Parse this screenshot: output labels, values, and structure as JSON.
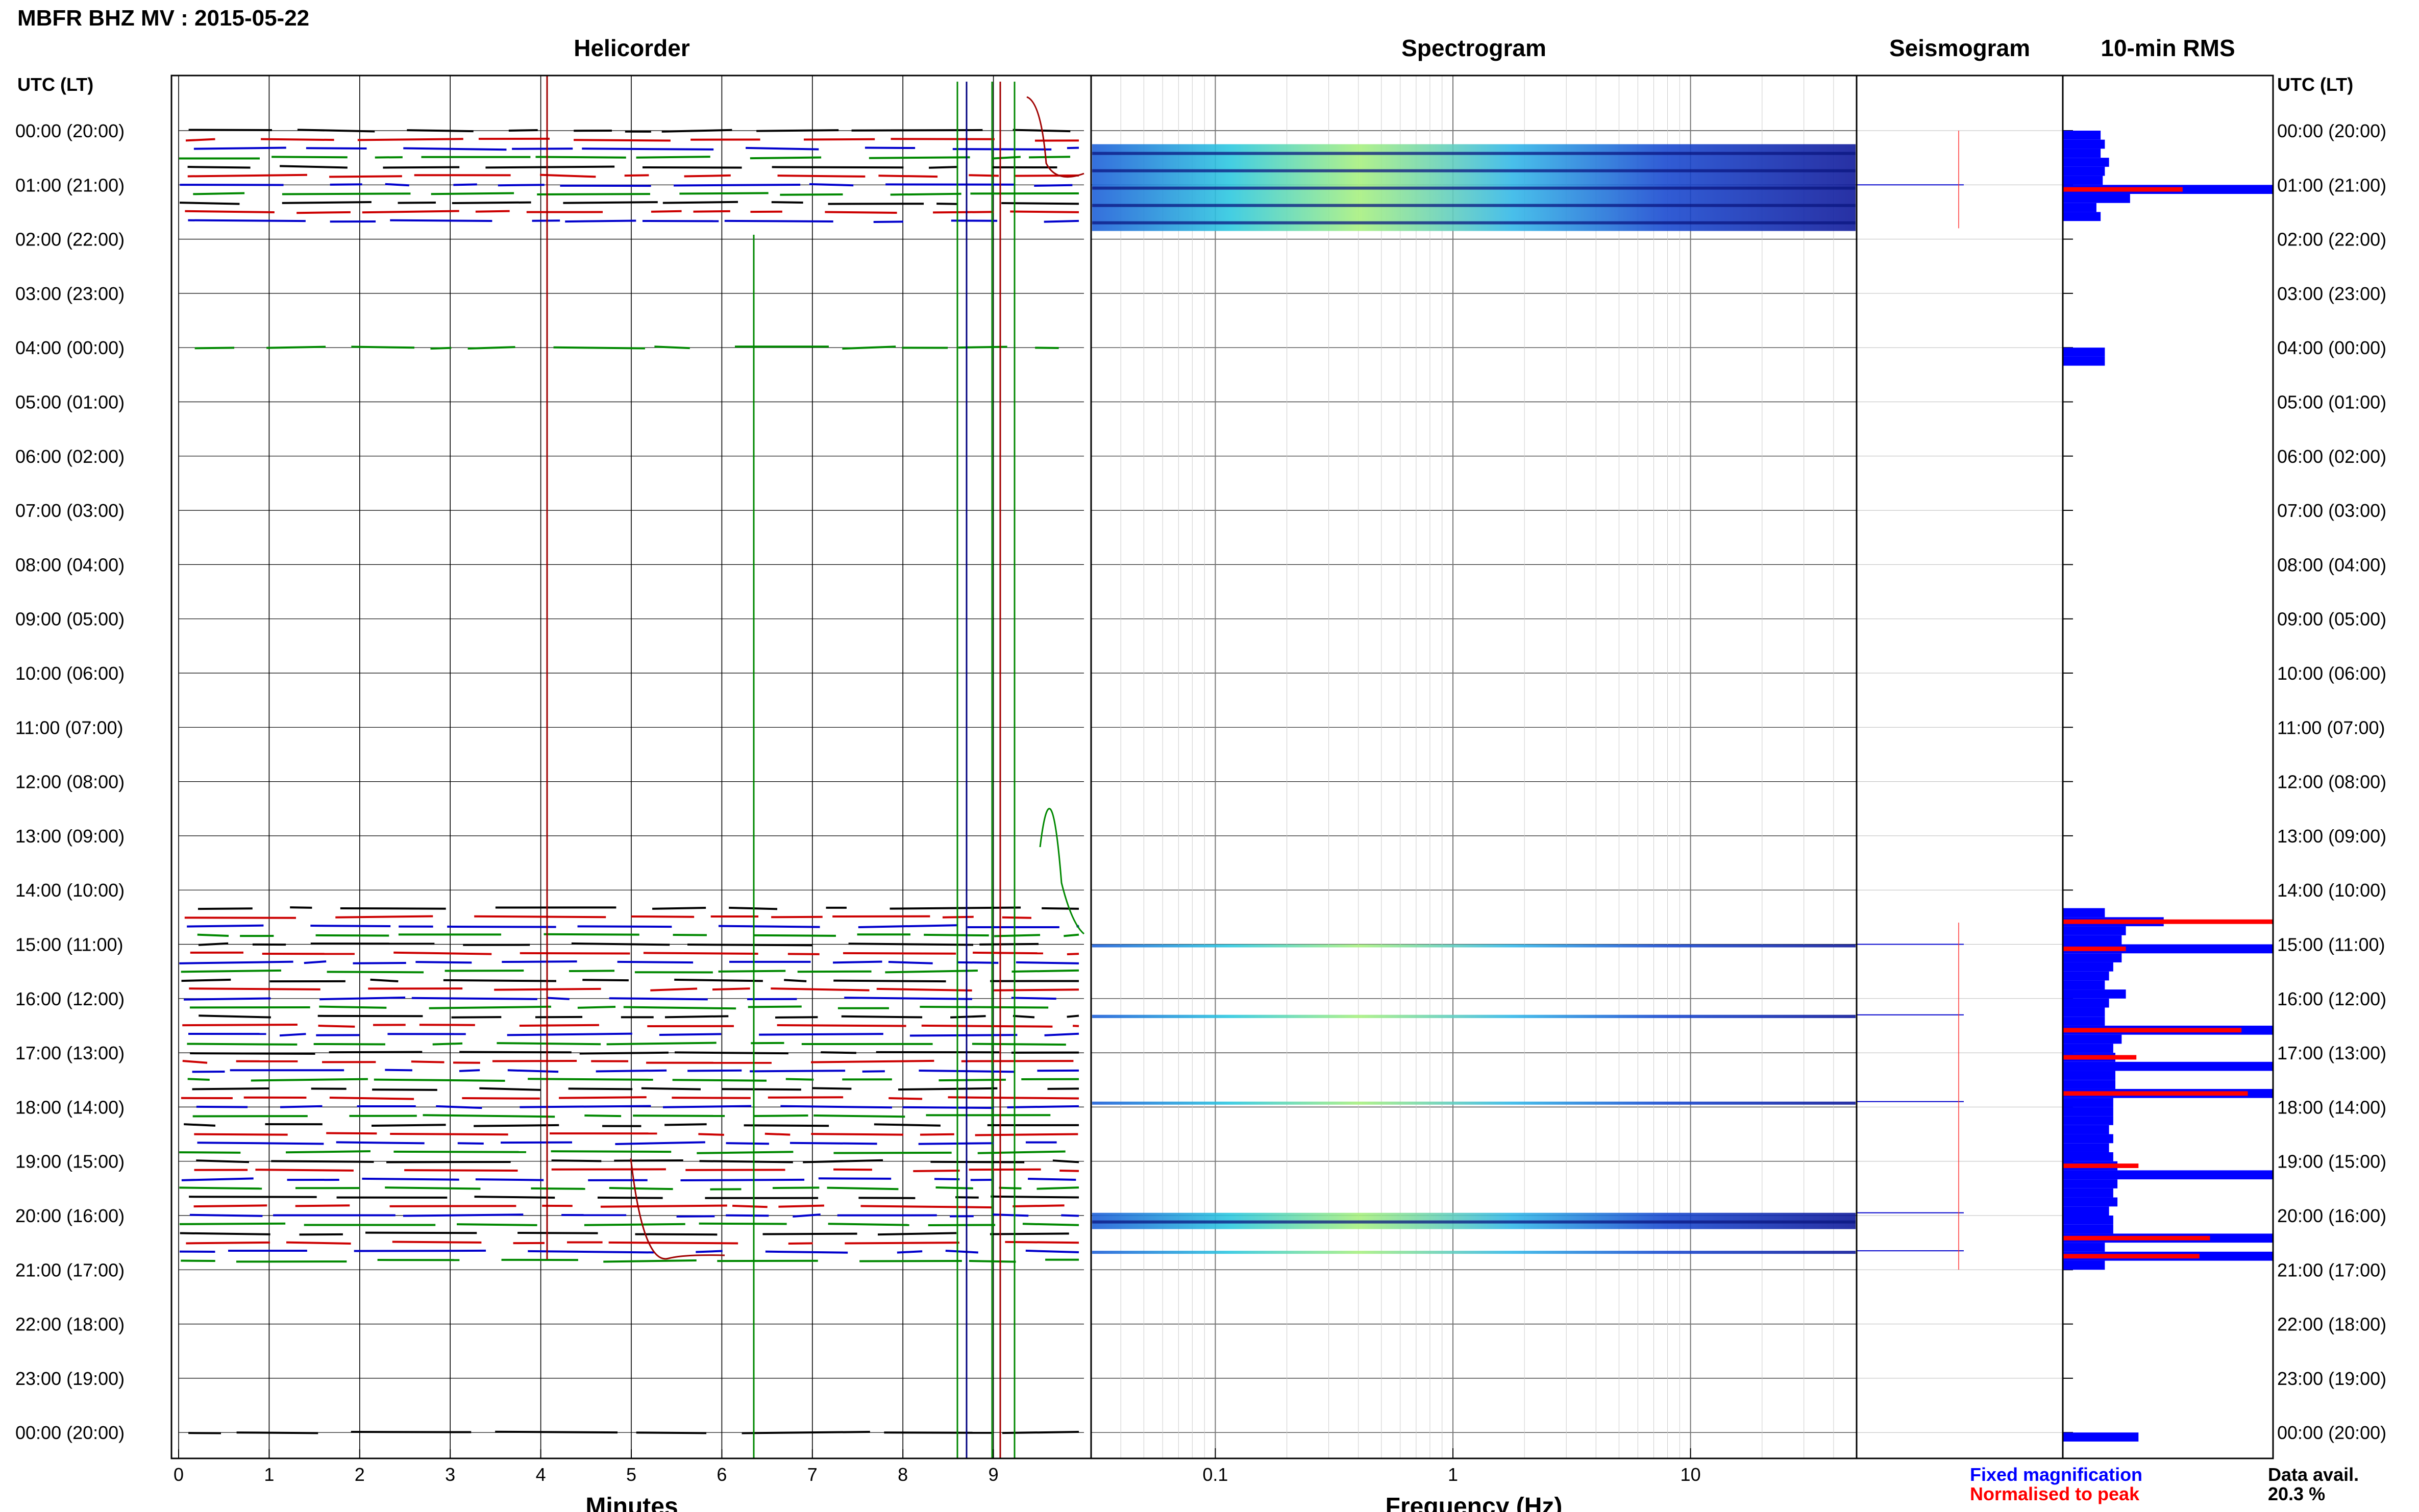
{
  "title": "MBFR BHZ MV : 2015-05-22",
  "panels": {
    "helicorder": "Helicorder",
    "spectrogram": "Spectrogram",
    "seismogram": "Seismogram",
    "rms": "10-min RMS"
  },
  "utc_header": "UTC (LT)",
  "time_labels": [
    "00:00 (20:00)",
    "01:00 (21:00)",
    "02:00 (22:00)",
    "03:00 (23:00)",
    "04:00 (00:00)",
    "05:00 (01:00)",
    "06:00 (02:00)",
    "07:00 (03:00)",
    "08:00 (04:00)",
    "09:00 (05:00)",
    "10:00 (06:00)",
    "11:00 (07:00)",
    "12:00 (08:00)",
    "13:00 (09:00)",
    "14:00 (10:00)",
    "15:00 (11:00)",
    "16:00 (12:00)",
    "17:00 (13:00)",
    "18:00 (14:00)",
    "19:00 (15:00)",
    "20:00 (16:00)",
    "21:00 (17:00)",
    "22:00 (18:00)",
    "23:00 (19:00)",
    "00:00 (20:00)"
  ],
  "helicorder_xlabel": "Minutes",
  "helicorder_xticks": [
    "0",
    "1",
    "2",
    "3",
    "4",
    "5",
    "6",
    "7",
    "8",
    "9"
  ],
  "spectrogram_xlabel": "Frequency (Hz)",
  "spectrogram_xticks": [
    "0.1",
    "1",
    "10"
  ],
  "legend": {
    "fixed": "Fixed magnification",
    "normalised": "Normalised to peak",
    "data_avail_label": "Data avail.",
    "data_avail_value": "20.3 %"
  },
  "colors": {
    "trace_cycle": [
      "#000000",
      "#cc0000",
      "#0000cc",
      "#008800"
    ],
    "rms_fixed": "#0000ff",
    "rms_normalised": "#ff0000",
    "legend_fixed": "#0000ff",
    "legend_normalised": "#ff0000"
  },
  "chart_data": {
    "type": "bar",
    "rms_bins_hours": [
      0.0,
      0.1667,
      0.3333,
      0.5,
      0.6667,
      0.8333,
      1.0,
      1.1667,
      1.3333,
      1.5,
      4.0,
      4.1667,
      14.3333,
      14.5,
      14.6667,
      14.8333,
      15.0,
      15.1667,
      15.3333,
      15.5,
      15.6667,
      15.8333,
      16.0,
      16.1667,
      16.3333,
      16.5,
      16.6667,
      16.8333,
      17.0,
      17.1667,
      17.3333,
      17.5,
      17.6667,
      17.8333,
      18.0,
      18.1667,
      18.3333,
      18.5,
      18.6667,
      18.8333,
      19.0,
      19.1667,
      19.3333,
      19.5,
      19.6667,
      19.8333,
      20.0,
      20.1667,
      20.3333,
      20.5,
      20.6667,
      20.8333,
      24.0
    ],
    "rms_fixed": [
      0.18,
      0.2,
      0.18,
      0.22,
      0.2,
      0.19,
      1.0,
      0.32,
      0.16,
      0.18,
      0.2,
      0.2,
      0.2,
      0.48,
      0.3,
      0.28,
      1.0,
      0.28,
      0.24,
      0.22,
      0.2,
      0.3,
      0.22,
      0.2,
      0.2,
      1.0,
      0.28,
      0.24,
      0.25,
      1.0,
      0.25,
      0.25,
      1.0,
      0.24,
      0.24,
      0.24,
      0.22,
      0.24,
      0.22,
      0.24,
      0.26,
      1.0,
      0.26,
      0.24,
      0.26,
      0.22,
      0.24,
      0.24,
      1.0,
      0.2,
      1.0,
      0.2,
      0.36
    ],
    "rms_normalised": [
      0,
      0,
      0,
      0,
      0,
      0,
      0.57,
      0,
      0,
      0,
      0,
      0,
      0,
      1.0,
      0,
      0,
      0.3,
      0,
      0,
      0,
      0,
      0,
      0,
      0,
      0,
      0.85,
      0,
      0,
      0.35,
      0,
      0,
      0,
      0.88,
      0,
      0,
      0,
      0,
      0,
      0,
      0,
      0.36,
      0,
      0,
      0,
      0,
      0,
      0,
      0,
      0.7,
      0,
      0.65,
      0,
      0
    ],
    "helicorder_lines_hours": [
      0.0,
      0.1667,
      0.3333,
      0.5,
      0.6667,
      0.8333,
      1.0,
      1.1667,
      1.3333,
      1.5,
      1.6667,
      4.0,
      14.3333,
      14.5,
      14.6667,
      14.8333,
      15.0,
      15.1667,
      15.3333,
      15.5,
      15.6667,
      15.8333,
      16.0,
      16.1667,
      16.3333,
      16.5,
      16.6667,
      16.8333,
      17.0,
      17.1667,
      17.3333,
      17.5,
      17.6667,
      17.8333,
      18.0,
      18.1667,
      18.3333,
      18.5,
      18.6667,
      18.8333,
      19.0,
      19.1667,
      19.3333,
      19.5,
      19.6667,
      19.8333,
      20.0,
      20.1667,
      20.3333,
      20.5,
      20.6667,
      20.8333,
      24.0
    ],
    "xlim_minutes": [
      0,
      10
    ],
    "spectrogram_xlim_hz": [
      0.03,
      50
    ],
    "spectrogram_scale": "log",
    "active_hours": [
      [
        0.0,
        1.8
      ],
      [
        4.0,
        4.2
      ],
      [
        14.3,
        21.0
      ],
      [
        23.8,
        24.0
      ]
    ]
  }
}
